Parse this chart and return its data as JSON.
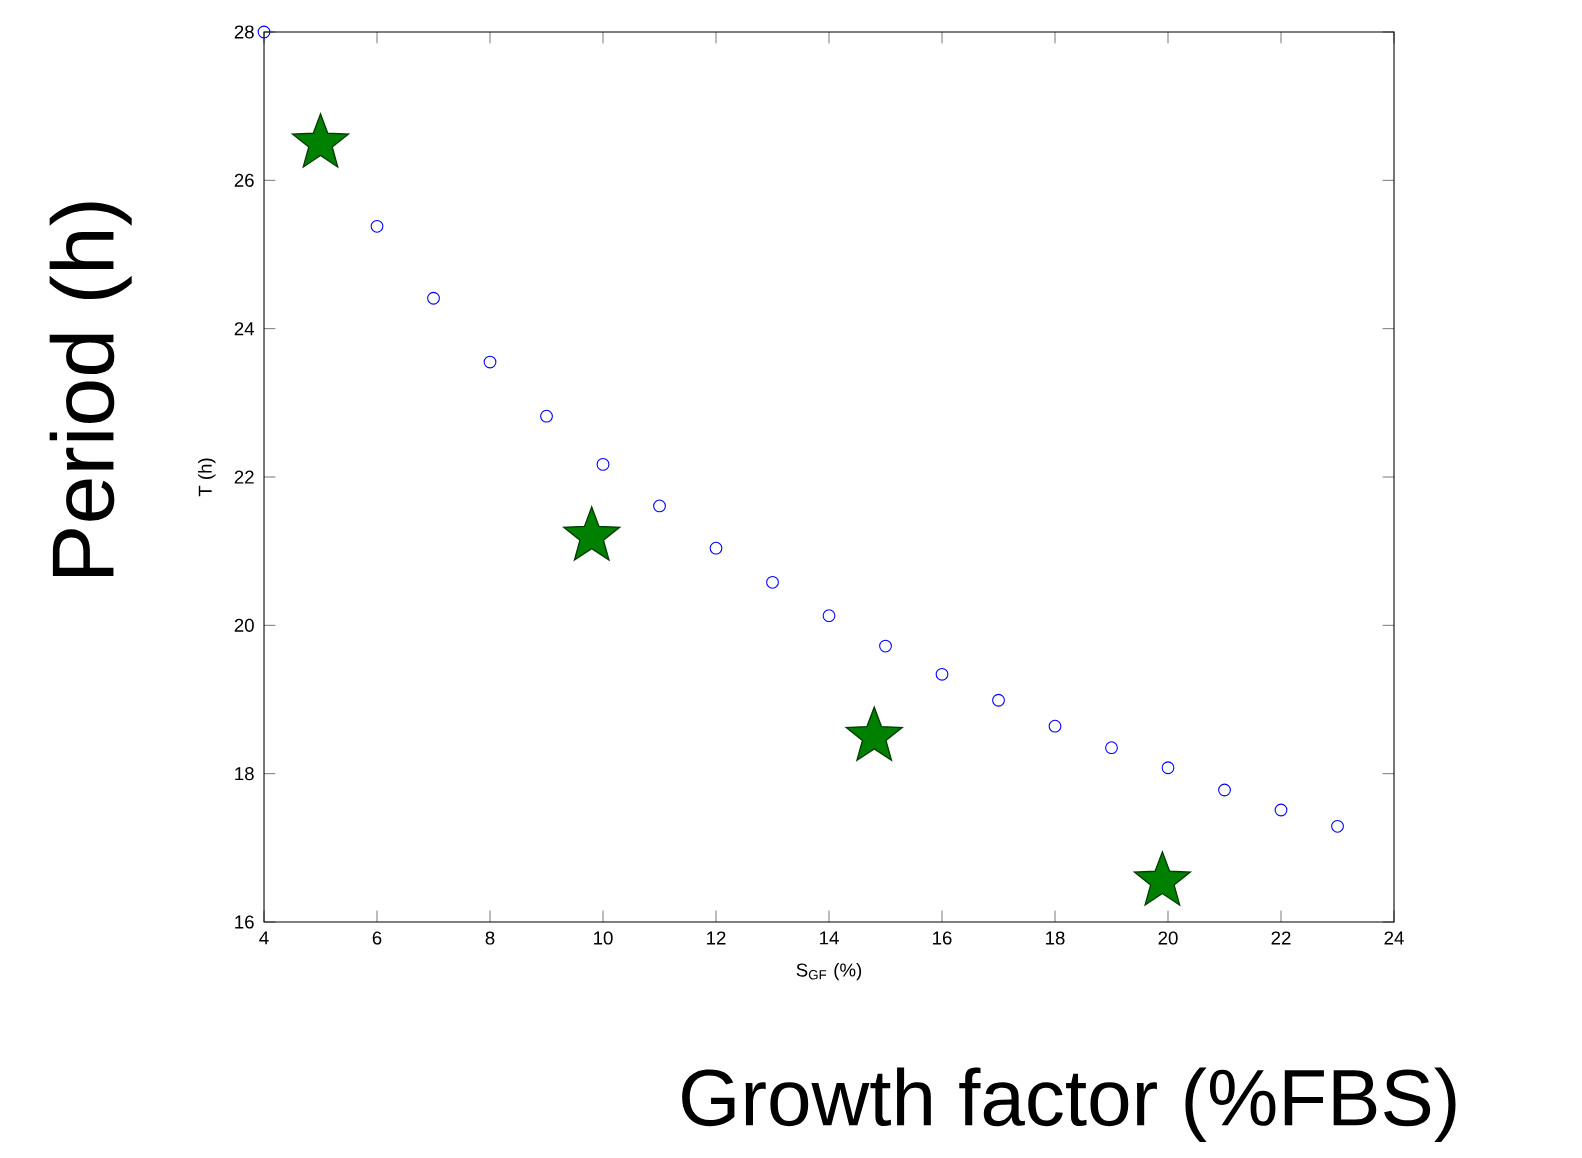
{
  "chart_data": {
    "type": "scatter",
    "xlabel": "S$_{GF}$ (%)",
    "ylabel": "T (h)",
    "annotations": [
      "Period (h)",
      "Growth factor  (%FBS)"
    ],
    "series": [
      {
        "marker": "circle",
        "color": "#0000ff",
        "x": [
          4,
          5,
          6,
          7,
          8,
          9,
          10,
          11,
          12,
          13,
          14,
          15,
          16,
          17,
          18,
          19,
          20,
          21,
          22,
          23
        ],
        "values": [
          28.0,
          null,
          25.38,
          24.41,
          23.55,
          22.82,
          22.17,
          21.61,
          21.04,
          20.58,
          20.13,
          19.72,
          19.34,
          18.99,
          18.64,
          18.35,
          18.08,
          17.78,
          17.51,
          17.29
        ]
      },
      {
        "marker": "star",
        "color": "#008000",
        "x": [
          5.0,
          9.8,
          14.8,
          19.9
        ],
        "values": [
          26.5,
          21.2,
          18.5,
          16.55
        ]
      }
    ],
    "xlim": [
      4,
      24
    ],
    "ylim": [
      16,
      28
    ],
    "xticks": [
      4,
      6,
      8,
      10,
      12,
      14,
      16,
      18,
      20,
      22,
      24
    ],
    "yticks": [
      16,
      18,
      20,
      22,
      24,
      26,
      28
    ],
    "grid": false
  }
}
